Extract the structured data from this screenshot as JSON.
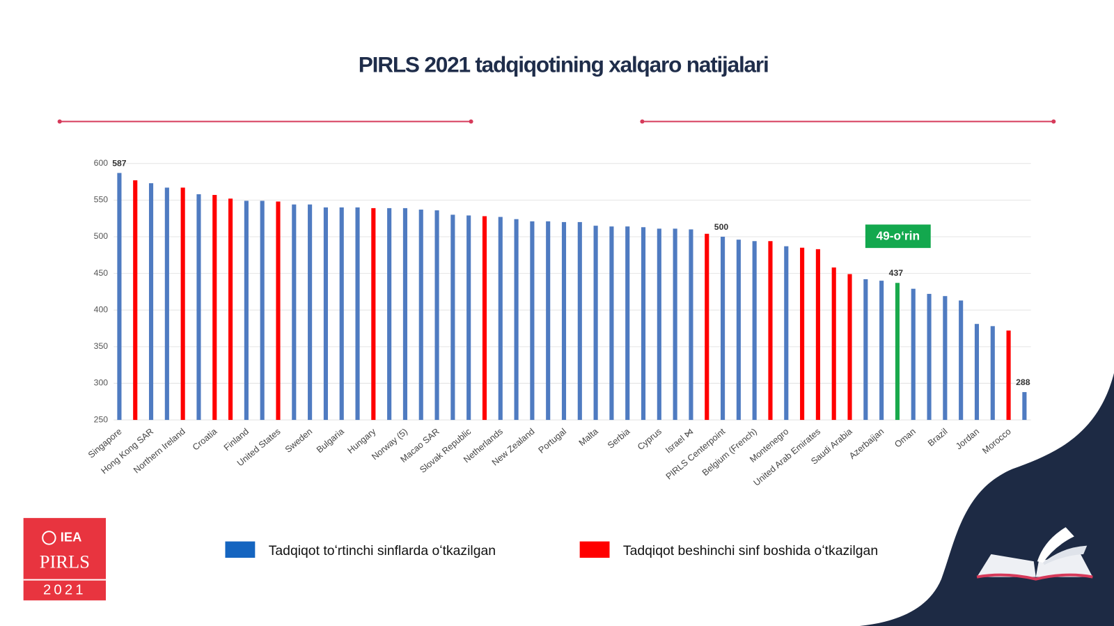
{
  "chart_data": {
    "type": "bar",
    "title": "PIRLS 2021 tadqiqotining xalqaro natijalari",
    "categories": [
      "Singapore",
      null,
      "Hong Kong SAR",
      null,
      "Northern Ireland",
      null,
      "Croatia",
      null,
      "Finland",
      null,
      "United States",
      null,
      "Sweden",
      null,
      "Bulgaria",
      null,
      "Hungary",
      null,
      "Norway (5)",
      null,
      "Macao SAR",
      null,
      "Slovak Republic",
      null,
      "Netherlands",
      null,
      "New Zealand",
      null,
      "Portugal",
      null,
      "Malta",
      null,
      "Serbia",
      null,
      "Cyprus",
      null,
      "Israel ⋈",
      null,
      "PIRLS Centerpoint",
      null,
      "Belgium (French)",
      null,
      "Montenegro",
      null,
      "United Arab Emirates",
      null,
      "Saudi Arabia",
      null,
      "Azerbaijan",
      null,
      "Oman",
      null,
      "Brazil",
      null,
      "Jordan",
      null,
      "Morocco",
      null
    ],
    "values": [
      587,
      577,
      573,
      567,
      567,
      558,
      557,
      552,
      549,
      549,
      548,
      544,
      544,
      540,
      540,
      540,
      539,
      539,
      539,
      537,
      536,
      530,
      529,
      528,
      527,
      524,
      521,
      521,
      520,
      520,
      515,
      514,
      514,
      513,
      511,
      511,
      510,
      504,
      500,
      496,
      494,
      494,
      487,
      485,
      483,
      458,
      449,
      442,
      440,
      437,
      429,
      422,
      419,
      413,
      381,
      378,
      372,
      288
    ],
    "value_labels": [
      "587",
      null,
      null,
      null,
      null,
      null,
      null,
      null,
      null,
      null,
      null,
      null,
      null,
      null,
      null,
      null,
      null,
      null,
      null,
      null,
      null,
      null,
      null,
      null,
      null,
      null,
      null,
      null,
      null,
      null,
      null,
      null,
      null,
      null,
      null,
      null,
      null,
      null,
      "500",
      null,
      null,
      null,
      null,
      null,
      null,
      null,
      null,
      null,
      null,
      "437",
      null,
      null,
      null,
      null,
      null,
      null,
      null,
      "288"
    ],
    "colors": [
      "#4f7bc1",
      "#ff0000",
      "#4f7bc1",
      "#4f7bc1",
      "#ff0000",
      "#4f7bc1",
      "#ff0000",
      "#ff0000",
      "#4f7bc1",
      "#4f7bc1",
      "#ff0000",
      "#4f7bc1",
      "#4f7bc1",
      "#4f7bc1",
      "#4f7bc1",
      "#4f7bc1",
      "#ff0000",
      "#4f7bc1",
      "#4f7bc1",
      "#4f7bc1",
      "#4f7bc1",
      "#4f7bc1",
      "#4f7bc1",
      "#ff0000",
      "#4f7bc1",
      "#4f7bc1",
      "#4f7bc1",
      "#4f7bc1",
      "#4f7bc1",
      "#4f7bc1",
      "#4f7bc1",
      "#4f7bc1",
      "#4f7bc1",
      "#4f7bc1",
      "#4f7bc1",
      "#4f7bc1",
      "#4f7bc1",
      "#ff0000",
      "#4f7bc1",
      "#4f7bc1",
      "#4f7bc1",
      "#ff0000",
      "#4f7bc1",
      "#ff0000",
      "#ff0000",
      "#ff0000",
      "#ff0000",
      "#4f7bc1",
      "#4f7bc1",
      "#1aa94c",
      "#4f7bc1",
      "#4f7bc1",
      "#4f7bc1",
      "#4f7bc1",
      "#4f7bc1",
      "#4f7bc1",
      "#ff0000",
      "#4f7bc1"
    ],
    "ylim": [
      250,
      600
    ],
    "yticks": [
      250,
      300,
      350,
      400,
      450,
      500,
      550,
      600
    ],
    "grid": true,
    "annotation": "49-oʻrin",
    "legend": [
      {
        "name": "Tadqiqot toʻrtinchi sinflarda oʻtkazilgan",
        "color": "#1565c0"
      },
      {
        "name": "Tadqiqot beshinchi sinf boshida oʻtkazilgan",
        "color": "#ff0000"
      }
    ]
  },
  "logo": {
    "org": "IEA",
    "name": "PIRLS",
    "year": "2021"
  }
}
